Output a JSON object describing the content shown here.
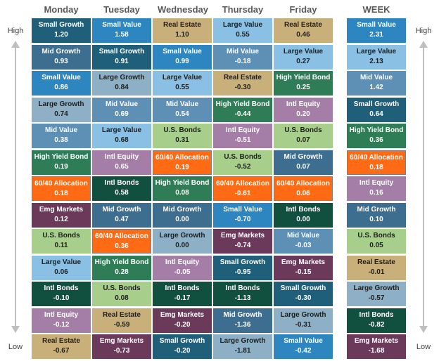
{
  "labels": {
    "high": "High",
    "low": "Low"
  },
  "headers": [
    "Monday",
    "Tuesday",
    "Wednesday",
    "Thursday",
    "Friday",
    "WEEK"
  ],
  "colors": {
    "Small Growth": "#1f5f7a",
    "Small Value": "#2e86c1",
    "Mid Growth": "#3d6d8f",
    "Mid Value": "#5e8fb5",
    "Large Growth": "#8eb0c6",
    "Large Value": "#89c0e4",
    "Real Estate": "#c9b07b",
    "High Yield Bond": "#2f7d57",
    "Intl Equity": "#a47ea6",
    "Intl Bonds": "#114f3f",
    "U.S. Bonds": "#a7cf8b",
    "Emg Markets": "#6b3a5b",
    "60/40 Allocation": "#ff6a14"
  },
  "columns": [
    [
      {
        "name": "Small Growth",
        "value": "1.20"
      },
      {
        "name": "Mid Growth",
        "value": "0.93"
      },
      {
        "name": "Small Value",
        "value": "0.86"
      },
      {
        "name": "Large Growth",
        "value": "0.74"
      },
      {
        "name": "Mid Value",
        "value": "0.38"
      },
      {
        "name": "High Yield Bond",
        "value": "0.19"
      },
      {
        "name": "60/40 Allocation",
        "value": "0.18"
      },
      {
        "name": "Emg Markets",
        "value": "0.12"
      },
      {
        "name": "U.S. Bonds",
        "value": "0.11"
      },
      {
        "name": "Large Value",
        "value": "0.06"
      },
      {
        "name": "Intl Bonds",
        "value": "-0.10"
      },
      {
        "name": "Intl Equity",
        "value": "-0.12"
      },
      {
        "name": "Real Estate",
        "value": "-0.67"
      }
    ],
    [
      {
        "name": "Small Value",
        "value": "1.58"
      },
      {
        "name": "Small Growth",
        "value": "0.91"
      },
      {
        "name": "Large Growth",
        "value": "0.84"
      },
      {
        "name": "Mid Value",
        "value": "0.69"
      },
      {
        "name": "Large Value",
        "value": "0.68"
      },
      {
        "name": "Intl Equity",
        "value": "0.65"
      },
      {
        "name": "Intl Bonds",
        "value": "0.58"
      },
      {
        "name": "Mid Growth",
        "value": "0.47"
      },
      {
        "name": "60/40 Allocation",
        "value": "0.36"
      },
      {
        "name": "High Yield Bond",
        "value": "0.28"
      },
      {
        "name": "U.S. Bonds",
        "value": "0.08"
      },
      {
        "name": "Real Estate",
        "value": "-0.59"
      },
      {
        "name": "Emg Markets",
        "value": "-0.73"
      }
    ],
    [
      {
        "name": "Real Estate",
        "value": "1.10"
      },
      {
        "name": "Small Value",
        "value": "0.99"
      },
      {
        "name": "Large Value",
        "value": "0.55"
      },
      {
        "name": "Mid Value",
        "value": "0.54"
      },
      {
        "name": "U.S. Bonds",
        "value": "0.31"
      },
      {
        "name": "60/40 Allocation",
        "value": "0.19"
      },
      {
        "name": "High Yield Bond",
        "value": "0.08"
      },
      {
        "name": "Mid Growth",
        "value": "0.00"
      },
      {
        "name": "Large Growth",
        "value": "0.00"
      },
      {
        "name": "Intl Equity",
        "value": "-0.05"
      },
      {
        "name": "Intl Bonds",
        "value": "-0.17"
      },
      {
        "name": "Emg Markets",
        "value": "-0.20"
      },
      {
        "name": "Small Growth",
        "value": "-0.20"
      }
    ],
    [
      {
        "name": "Large Value",
        "value": "0.55"
      },
      {
        "name": "Mid Value",
        "value": "-0.18"
      },
      {
        "name": "Real Estate",
        "value": "-0.30"
      },
      {
        "name": "High Yield Bond",
        "value": "-0.44"
      },
      {
        "name": "Intl Equity",
        "value": "-0.51"
      },
      {
        "name": "U.S. Bonds",
        "value": "-0.52"
      },
      {
        "name": "60/40 Allocation",
        "value": "-0.61"
      },
      {
        "name": "Small Value",
        "value": "-0.70"
      },
      {
        "name": "Emg Markets",
        "value": "-0.74"
      },
      {
        "name": "Small Growth",
        "value": "-0.95"
      },
      {
        "name": "Intl Bonds",
        "value": "-1.13"
      },
      {
        "name": "Mid Growth",
        "value": "-1.36"
      },
      {
        "name": "Large Growth",
        "value": "-1.81"
      }
    ],
    [
      {
        "name": "Real Estate",
        "value": "0.46"
      },
      {
        "name": "Large Value",
        "value": "0.27"
      },
      {
        "name": "High Yield Bond",
        "value": "0.25"
      },
      {
        "name": "Intl Equity",
        "value": "0.20"
      },
      {
        "name": "U.S. Bonds",
        "value": "0.07"
      },
      {
        "name": "Mid Growth",
        "value": "0.07"
      },
      {
        "name": "60/40 Allocation",
        "value": "0.06"
      },
      {
        "name": "Intl Bonds",
        "value": "0.00"
      },
      {
        "name": "Mid Value",
        "value": "-0.03"
      },
      {
        "name": "Emg Markets",
        "value": "-0.15"
      },
      {
        "name": "Small Growth",
        "value": "-0.30"
      },
      {
        "name": "Large Growth",
        "value": "-0.31"
      },
      {
        "name": "Small Value",
        "value": "-0.42"
      }
    ],
    [
      {
        "name": "Small Value",
        "value": "2.31"
      },
      {
        "name": "Large Value",
        "value": "2.13"
      },
      {
        "name": "Mid Value",
        "value": "1.42"
      },
      {
        "name": "Small Growth",
        "value": "0.64"
      },
      {
        "name": "High Yield Bond",
        "value": "0.36"
      },
      {
        "name": "60/40 Allocation",
        "value": "0.18"
      },
      {
        "name": "Intl Equity",
        "value": "0.16"
      },
      {
        "name": "Mid Growth",
        "value": "0.10"
      },
      {
        "name": "U.S. Bonds",
        "value": "0.05"
      },
      {
        "name": "Real Estate",
        "value": "-0.01"
      },
      {
        "name": "Large Growth",
        "value": "-0.57"
      },
      {
        "name": "Intl Bonds",
        "value": "-0.82"
      },
      {
        "name": "Emg Markets",
        "value": "-1.68"
      }
    ]
  ]
}
